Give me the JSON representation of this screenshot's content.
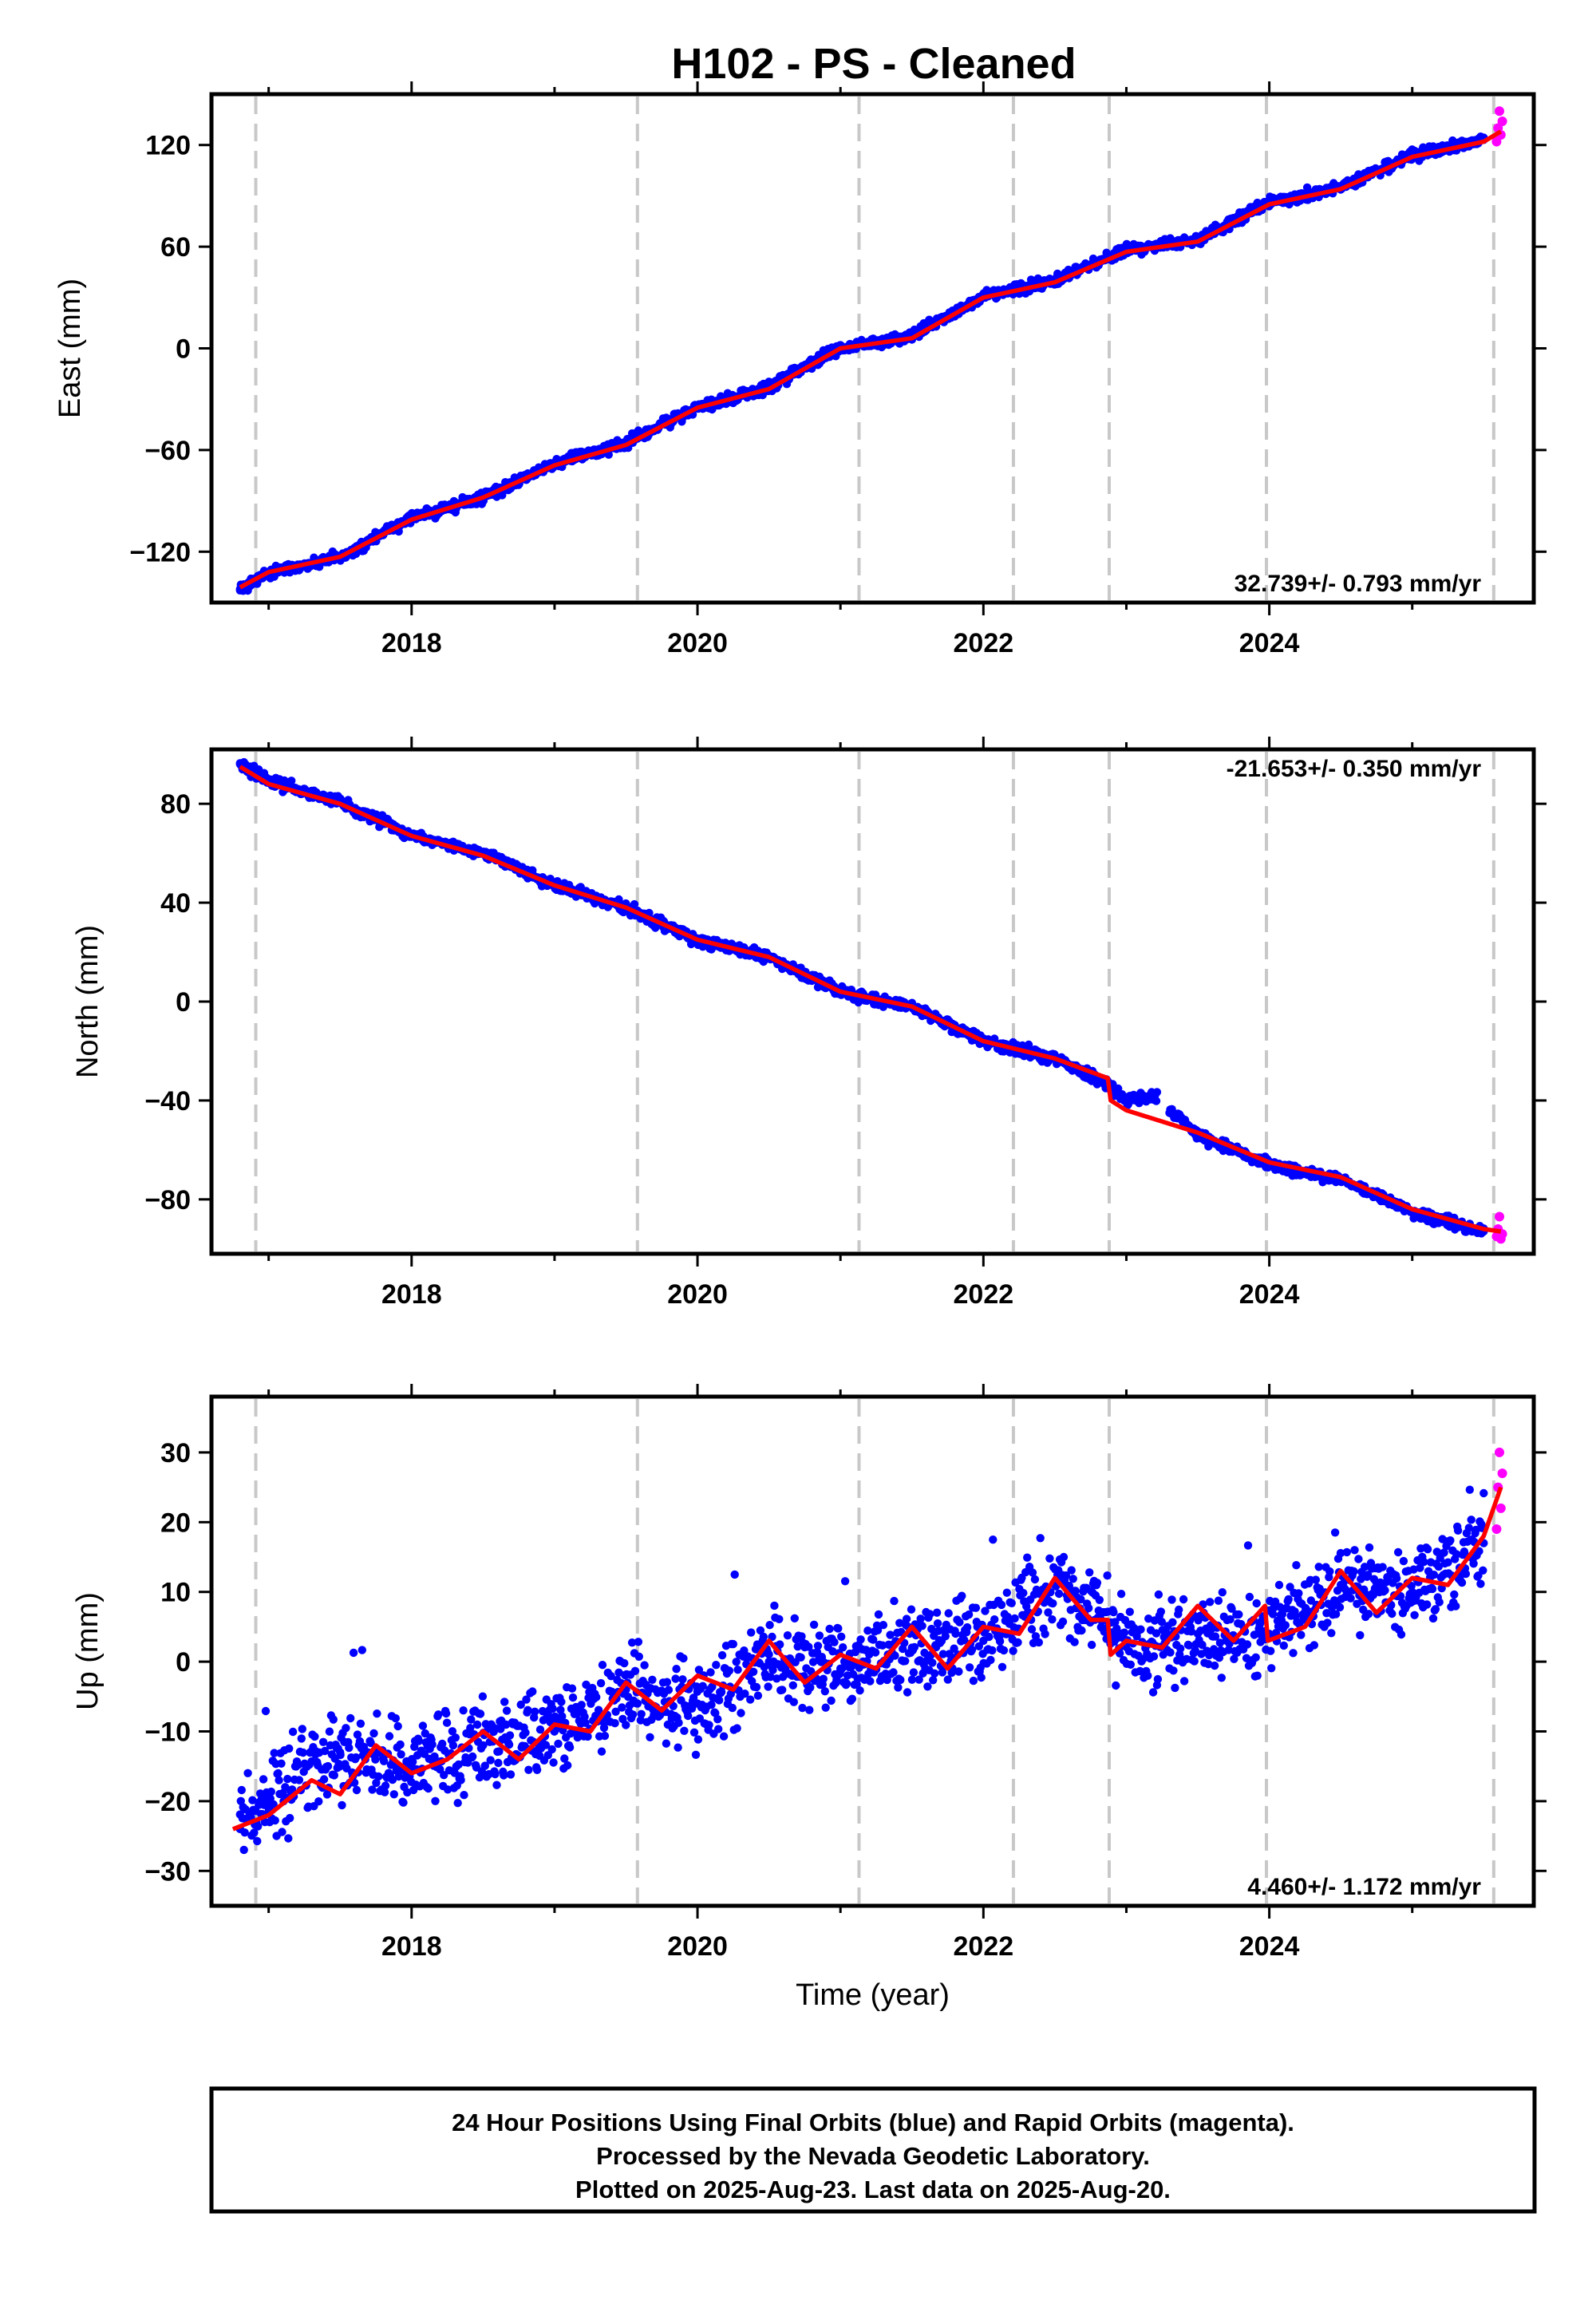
{
  "title": "H102  - PS - Cleaned",
  "colors": {
    "final_orbits": "#0000ff",
    "rapid_orbits": "#ff00ff",
    "model": "#ff0000",
    "event_lines": "#c8c8c8",
    "frame": "#000000"
  },
  "chart_data": [
    {
      "type": "scatter",
      "component": "east",
      "ylabel": "East (mm)",
      "xlabel": "",
      "xlim": [
        2016.6,
        2025.85
      ],
      "ylim": [
        -150,
        150
      ],
      "xticks": [
        "2018",
        "2020",
        "2022",
        "2024"
      ],
      "yticks": [
        "-120",
        "-60",
        "0",
        "60",
        "120"
      ],
      "rate_label": "32.739+/- 0.793 mm/yr",
      "event_lines_x": [
        2016.91,
        2019.58,
        2021.13,
        2022.21,
        2022.88,
        2023.98,
        2025.57
      ],
      "series": [
        {
          "name": "Final Orbits",
          "color": "blue",
          "style": "dots",
          "x": [
            2016.8,
            2017.0,
            2017.5,
            2018.0,
            2018.5,
            2019.0,
            2019.5,
            2020.0,
            2020.5,
            2021.0,
            2021.5,
            2022.0,
            2022.5,
            2023.0,
            2023.5,
            2024.0,
            2024.5,
            2025.0,
            2025.5
          ],
          "y": [
            -142,
            -133,
            -123,
            -100,
            -88,
            -68,
            -56,
            -35,
            -23,
            0,
            7,
            31,
            40,
            58,
            64,
            86,
            95,
            114,
            123
          ]
        },
        {
          "name": "Rapid Orbits",
          "color": "magenta",
          "style": "dots",
          "x": [
            2025.59,
            2025.6,
            2025.61,
            2025.62,
            2025.63
          ],
          "y": [
            122,
            130,
            140,
            126,
            134
          ]
        },
        {
          "name": "Model",
          "color": "red",
          "style": "line",
          "x": [
            2016.8,
            2017.0,
            2017.5,
            2018.0,
            2018.5,
            2019.0,
            2019.5,
            2020.0,
            2020.5,
            2021.0,
            2021.5,
            2022.0,
            2022.5,
            2023.0,
            2023.5,
            2024.0,
            2024.5,
            2025.0,
            2025.5,
            2025.62
          ],
          "y": [
            -141,
            -132,
            -123,
            -101,
            -88,
            -69,
            -57,
            -35,
            -24,
            0,
            6,
            30,
            39,
            57,
            63,
            85,
            94,
            113,
            122,
            128
          ]
        }
      ]
    },
    {
      "type": "scatter",
      "component": "north",
      "ylabel": "North (mm)",
      "xlabel": "",
      "xlim": [
        2016.6,
        2025.85
      ],
      "ylim": [
        -102,
        102
      ],
      "xticks": [
        "2018",
        "2020",
        "2022",
        "2024"
      ],
      "yticks": [
        "-80",
        "-40",
        "0",
        "40",
        "80"
      ],
      "rate_label": "-21.653+/- 0.350 mm/yr",
      "event_lines_x": [
        2016.91,
        2019.58,
        2021.13,
        2022.21,
        2022.88,
        2023.98,
        2025.57
      ],
      "series": [
        {
          "name": "Final Orbits",
          "color": "blue",
          "style": "dots",
          "x": [
            2016.8,
            2017.0,
            2017.5,
            2018.0,
            2018.5,
            2019.0,
            2019.5,
            2020.0,
            2020.5,
            2021.0,
            2021.5,
            2022.0,
            2022.5,
            2022.88,
            2023.0,
            2023.2,
            2023.5,
            2024.0,
            2024.5,
            2025.0,
            2025.5
          ],
          "y": [
            96,
            89,
            81,
            67,
            60,
            47,
            38,
            25,
            18,
            4,
            -2,
            -16,
            -23,
            -34,
            -40,
            -38,
            -54,
            -66,
            -72,
            -85,
            -93
          ]
        },
        {
          "name": "Rapid Orbits",
          "color": "magenta",
          "style": "dots",
          "x": [
            2025.59,
            2025.6,
            2025.61,
            2025.62,
            2025.63
          ],
          "y": [
            -95,
            -92,
            -87,
            -96,
            -94
          ]
        },
        {
          "name": "Model",
          "color": "red",
          "style": "line",
          "x": [
            2016.8,
            2017.0,
            2017.5,
            2018.0,
            2018.5,
            2019.0,
            2019.5,
            2020.0,
            2020.5,
            2021.0,
            2021.5,
            2022.0,
            2022.5,
            2022.87,
            2022.89,
            2023.0,
            2023.5,
            2024.0,
            2024.5,
            2025.0,
            2025.5,
            2025.62
          ],
          "y": [
            95,
            88,
            80,
            67,
            59,
            47,
            38,
            25,
            18,
            4,
            -2,
            -16,
            -23,
            -31,
            -40,
            -44,
            -53,
            -65,
            -71,
            -84,
            -92,
            -93
          ]
        }
      ]
    },
    {
      "type": "scatter",
      "component": "up",
      "ylabel": "Up (mm)",
      "xlabel": "Time (year)",
      "xlim": [
        2016.6,
        2025.85
      ],
      "ylim": [
        -35,
        38
      ],
      "xticks": [
        "2018",
        "2020",
        "2022",
        "2024"
      ],
      "yticks": [
        "-30",
        "-20",
        "-10",
        "0",
        "10",
        "20",
        "30"
      ],
      "rate_label": "4.460+/- 1.172 mm/yr",
      "event_lines_x": [
        2016.91,
        2019.58,
        2021.13,
        2022.21,
        2022.88,
        2023.98,
        2025.57
      ],
      "series": [
        {
          "name": "Final Orbits",
          "color": "blue",
          "style": "dots",
          "x": [
            2016.8,
            2017.0,
            2017.5,
            2018.0,
            2018.5,
            2019.0,
            2019.5,
            2020.0,
            2020.5,
            2021.0,
            2021.5,
            2022.0,
            2022.5,
            2023.0,
            2023.5,
            2024.0,
            2024.5,
            2025.0,
            2025.5
          ],
          "y": [
            -24,
            -20,
            -13,
            -15,
            -12,
            -10,
            -4,
            -6,
            0,
            -1,
            2,
            3,
            11,
            3,
            4,
            4,
            11,
            10,
            17
          ]
        },
        {
          "name": "Rapid Orbits",
          "color": "magenta",
          "style": "dots",
          "x": [
            2025.59,
            2025.6,
            2025.61,
            2025.62,
            2025.63
          ],
          "y": [
            19,
            25,
            30,
            22,
            27
          ]
        },
        {
          "name": "Model",
          "color": "red",
          "style": "line",
          "x": [
            2016.75,
            2017.0,
            2017.3,
            2017.5,
            2017.75,
            2018.0,
            2018.25,
            2018.5,
            2018.75,
            2019.0,
            2019.25,
            2019.5,
            2019.75,
            2020.0,
            2020.25,
            2020.5,
            2020.75,
            2021.0,
            2021.25,
            2021.5,
            2021.75,
            2022.0,
            2022.25,
            2022.5,
            2022.75,
            2022.87,
            2022.89,
            2023.0,
            2023.25,
            2023.5,
            2023.75,
            2023.97,
            2023.99,
            2024.25,
            2024.5,
            2024.75,
            2025.0,
            2025.25,
            2025.5,
            2025.62
          ],
          "y": [
            -24,
            -22,
            -17,
            -19,
            -12,
            -16,
            -14,
            -10,
            -14,
            -9,
            -10,
            -3,
            -7,
            -2,
            -4,
            3,
            -3,
            1,
            -1,
            5,
            -1,
            5,
            4,
            12,
            6,
            6,
            1,
            3,
            2,
            8,
            3,
            8,
            3,
            5,
            13,
            7,
            12,
            11,
            18,
            25
          ]
        }
      ]
    }
  ],
  "footer": {
    "line1": "24 Hour Positions Using Final Orbits (blue) and Rapid Orbits (magenta).",
    "line2": "Processed by the Nevada Geodetic Laboratory.",
    "line3": "Plotted on 2025-Aug-23. Last data on 2025-Aug-20."
  }
}
